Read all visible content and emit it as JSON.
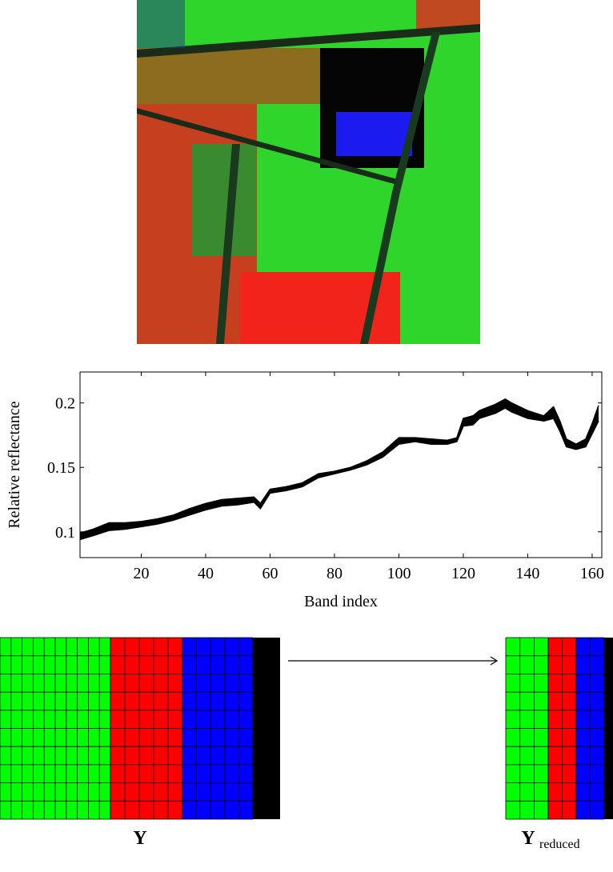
{
  "chart_data": {
    "type": "band",
    "x": [
      1,
      5,
      10,
      15,
      20,
      25,
      30,
      35,
      40,
      45,
      50,
      55,
      57,
      60,
      65,
      70,
      75,
      80,
      85,
      90,
      95,
      100,
      105,
      110,
      115,
      118,
      120,
      123,
      125,
      130,
      133,
      135,
      140,
      145,
      148,
      150,
      152,
      155,
      158,
      160,
      162
    ],
    "series": [
      {
        "color": "#000000",
        "values": [
          0.094,
          0.097,
          0.101,
          0.102,
          0.104,
          0.106,
          0.109,
          0.113,
          0.117,
          0.12,
          0.121,
          0.123,
          0.118,
          0.13,
          0.132,
          0.135,
          0.142,
          0.145,
          0.148,
          0.152,
          0.158,
          0.168,
          0.17,
          0.168,
          0.168,
          0.17,
          0.182,
          0.183,
          0.188,
          0.192,
          0.196,
          0.193,
          0.188,
          0.186,
          0.188,
          0.178,
          0.166,
          0.164,
          0.166,
          0.176,
          0.186
        ]
      },
      {
        "color": "#000000",
        "values": [
          0.099,
          0.102,
          0.107,
          0.107,
          0.108,
          0.11,
          0.113,
          0.118,
          0.122,
          0.125,
          0.126,
          0.127,
          0.122,
          0.133,
          0.135,
          0.138,
          0.145,
          0.147,
          0.15,
          0.155,
          0.162,
          0.173,
          0.173,
          0.172,
          0.171,
          0.173,
          0.188,
          0.19,
          0.194,
          0.199,
          0.203,
          0.2,
          0.194,
          0.19,
          0.197,
          0.186,
          0.172,
          0.168,
          0.172,
          0.184,
          0.198
        ]
      }
    ],
    "xlabel": "Band index",
    "ylabel": "Relative reflectance",
    "xlim": [
      1,
      163
    ],
    "ylim": [
      0.08,
      0.224
    ],
    "xticks": [
      20,
      40,
      60,
      80,
      100,
      120,
      140,
      160
    ],
    "yticks": [
      0.1,
      0.15,
      0.2
    ]
  },
  "diagram": {
    "left_label": "Y",
    "right_label": "Y",
    "right_subscript": "reduced"
  }
}
